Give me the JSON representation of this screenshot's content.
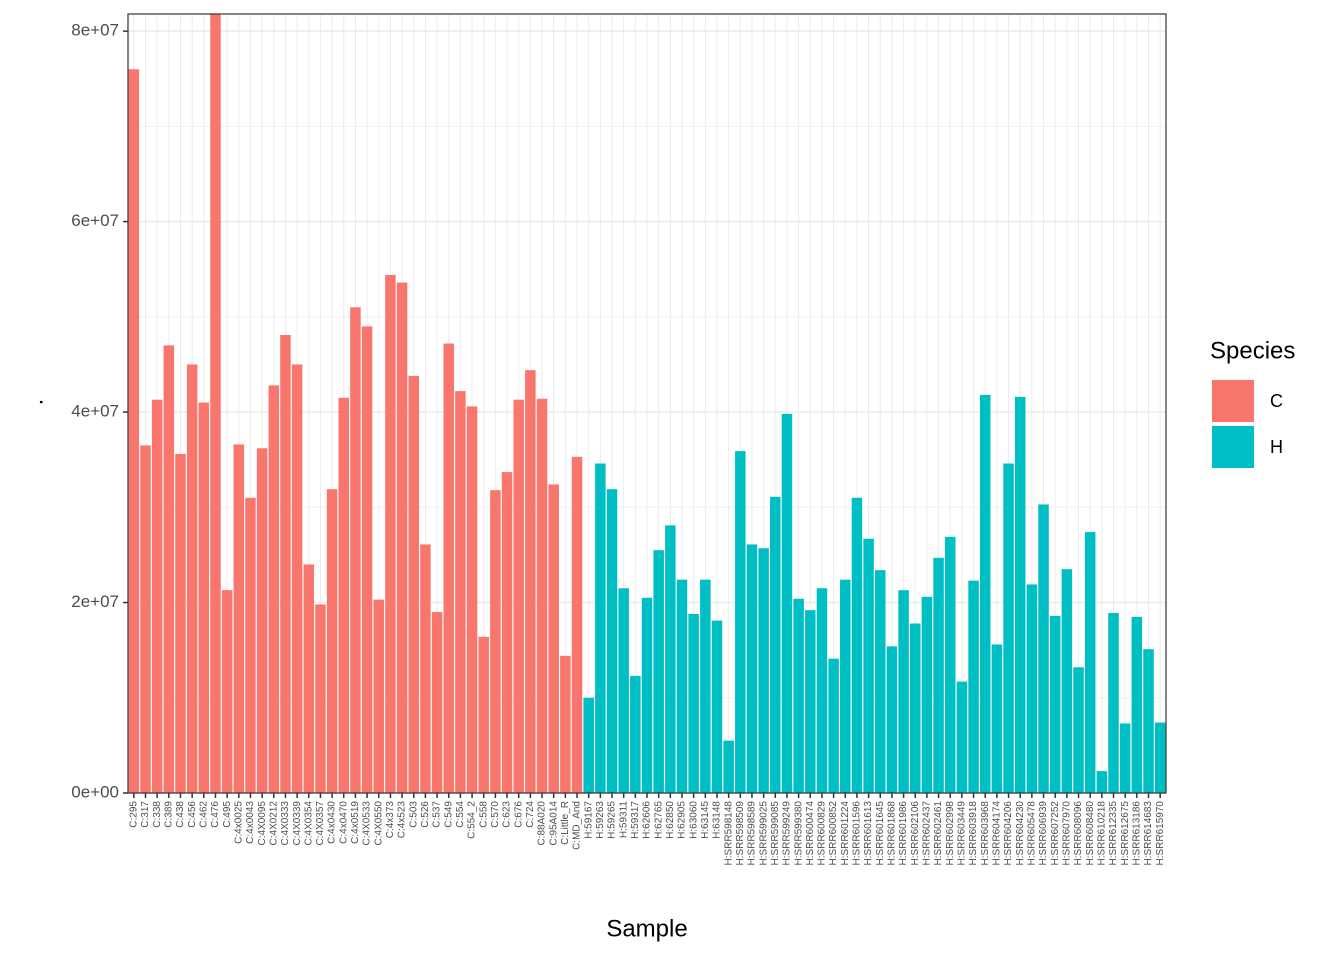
{
  "chart_data": {
    "type": "bar",
    "x_label": "Sample",
    "y_label": ".",
    "legend_title": "Species",
    "categories": [
      "C:295",
      "C:317",
      "C:338",
      "C:389",
      "C:438",
      "C:456",
      "C:462",
      "C:476",
      "C:495",
      "C:4x0025",
      "C:4x0043",
      "C:4X0095",
      "C:4X0212",
      "C:4X0333",
      "C:4X0339",
      "C:4X0354",
      "C:4X0357",
      "C:4x0430",
      "C:4x0470",
      "C:4x0519",
      "C:4X0533",
      "C:4X0550",
      "C:4x373",
      "C:4x523",
      "C:503",
      "C:526",
      "C:537",
      "C:549",
      "C:554",
      "C:554_2",
      "C:558",
      "C:570",
      "C:623",
      "C:676",
      "C:724",
      "C:88A020",
      "C:95A014",
      "C:Little_R",
      "C:MD_And",
      "H:59167",
      "H:59263",
      "H:59265",
      "H:59311",
      "H:59317",
      "H:62606",
      "H:62765",
      "H:62850",
      "H:62905",
      "H:63060",
      "H:63145",
      "H:63148",
      "H:SRR598148",
      "H:SRR598509",
      "H:SRR598589",
      "H:SRR599025",
      "H:SRR599085",
      "H:SRR599249",
      "H:SRR599380",
      "H:SRR600474",
      "H:SRR600829",
      "H:SRR600852",
      "H:SRR601224",
      "H:SRR601596",
      "H:SRR601613",
      "H:SRR601645",
      "H:SRR601868",
      "H:SRR601986",
      "H:SRR602106",
      "H:SRR602437",
      "H:SRR602461",
      "H:SRR602998",
      "H:SRR603449",
      "H:SRR603918",
      "H:SRR603968",
      "H:SRR604174",
      "H:SRR604206",
      "H:SRR604230",
      "H:SRR605478",
      "H:SRR606939",
      "H:SRR607252",
      "H:SRR607970",
      "H:SRR608096",
      "H:SRR608480",
      "H:SRR610218",
      "H:SRR612335",
      "H:SRR612675",
      "H:SRR613186",
      "H:SRR614683",
      "H:SRR615970"
    ],
    "series": [
      {
        "name": "C",
        "color": "#F8766D",
        "values": [
          76000000,
          36500000,
          41300000,
          47000000,
          35600000,
          45000000,
          41000000,
          81800000,
          21300000,
          36600000,
          31000000,
          36200000,
          42800000,
          48100000,
          45000000,
          24000000,
          19800000,
          31900000,
          41500000,
          51000000,
          49000000,
          20300000,
          54400000,
          53600000,
          43800000,
          26100000,
          19000000,
          47200000,
          42200000,
          40600000,
          16400000,
          31800000,
          33700000,
          41300000,
          44400000,
          41400000,
          32400000,
          14400000,
          35300000,
          null,
          null,
          null,
          null,
          null,
          null,
          null,
          null,
          null,
          null,
          null,
          null,
          null,
          null,
          null,
          null,
          null,
          null,
          null,
          null,
          null,
          null,
          null,
          null,
          null,
          null,
          null,
          null,
          null,
          null,
          null,
          null,
          null,
          null,
          null,
          null,
          null,
          null,
          null,
          null,
          null,
          null,
          null,
          null,
          null,
          null,
          null,
          null,
          null,
          null
        ]
      },
      {
        "name": "H",
        "color": "#00BFC4",
        "values": [
          null,
          null,
          null,
          null,
          null,
          null,
          null,
          null,
          null,
          null,
          null,
          null,
          null,
          null,
          null,
          null,
          null,
          null,
          null,
          null,
          null,
          null,
          null,
          null,
          null,
          null,
          null,
          null,
          null,
          null,
          null,
          null,
          null,
          null,
          null,
          null,
          null,
          null,
          null,
          10000000,
          34600000,
          31900000,
          21500000,
          12300000,
          20500000,
          25500000,
          28100000,
          22400000,
          18800000,
          22400000,
          18100000,
          5500000,
          35900000,
          26100000,
          25700000,
          31100000,
          39800000,
          20400000,
          19200000,
          21500000,
          14100000,
          22400000,
          31000000,
          26700000,
          23400000,
          15400000,
          21300000,
          17800000,
          20600000,
          24700000,
          26900000,
          11700000,
          22300000,
          41800000,
          15600000,
          34600000,
          41600000,
          21900000,
          30300000,
          18600000,
          23500000,
          13200000,
          27400000,
          2300000,
          18900000,
          7300000,
          18500000,
          15100000,
          7400000
        ]
      }
    ],
    "ylim": [
      0,
      81800000
    ],
    "yticks": [
      {
        "value": 0,
        "label": "0e+00"
      },
      {
        "value": 20000000,
        "label": "2e+07"
      },
      {
        "value": 40000000,
        "label": "4e+07"
      },
      {
        "value": 60000000,
        "label": "6e+07"
      },
      {
        "value": 80000000,
        "label": "8e+07"
      }
    ],
    "grid": true,
    "legend": "right"
  }
}
